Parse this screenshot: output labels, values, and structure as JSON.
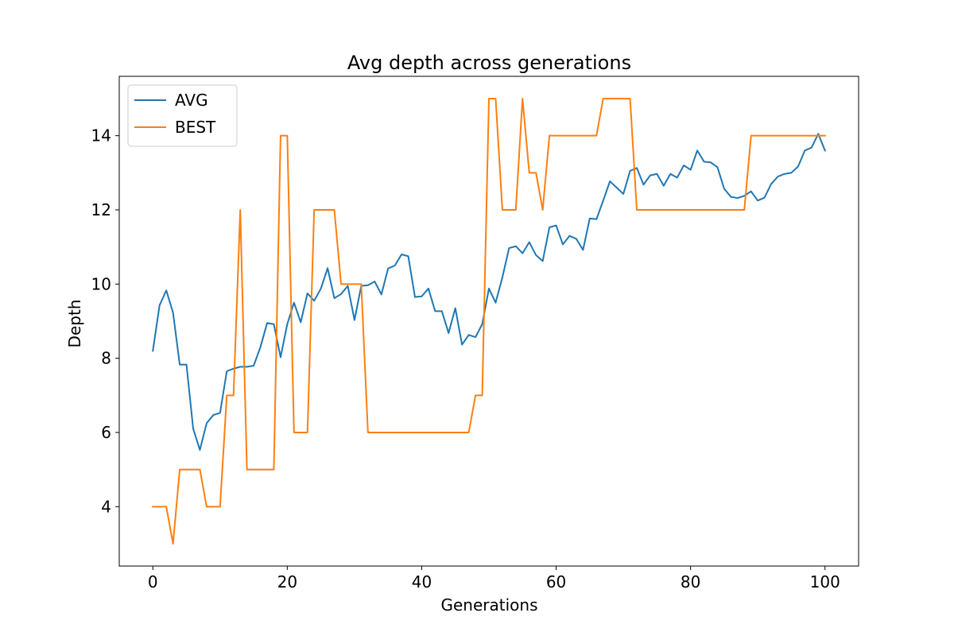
{
  "chart_data": {
    "type": "line",
    "title": "Avg depth across generations",
    "xlabel": "Generations",
    "ylabel": "Depth",
    "xlim": [
      -5,
      105
    ],
    "ylim": [
      2.4,
      15.6
    ],
    "xticks": [
      0,
      20,
      40,
      60,
      80,
      100
    ],
    "yticks": [
      4,
      6,
      8,
      10,
      12,
      14
    ],
    "grid": false,
    "legend_position": "upper-left",
    "x": [
      0,
      1,
      2,
      3,
      4,
      5,
      6,
      7,
      8,
      9,
      10,
      11,
      12,
      13,
      14,
      15,
      16,
      17,
      18,
      19,
      20,
      21,
      22,
      23,
      24,
      25,
      26,
      27,
      28,
      29,
      30,
      31,
      32,
      33,
      34,
      35,
      36,
      37,
      38,
      39,
      40,
      41,
      42,
      43,
      44,
      45,
      46,
      47,
      48,
      49,
      50,
      51,
      52,
      53,
      54,
      55,
      56,
      57,
      58,
      59,
      60,
      61,
      62,
      63,
      64,
      65,
      66,
      67,
      68,
      69,
      70,
      71,
      72,
      73,
      74,
      75,
      76,
      77,
      78,
      79,
      80,
      81,
      82,
      83,
      84,
      85,
      86,
      87,
      88,
      89,
      90,
      91,
      92,
      93,
      94,
      95,
      96,
      97,
      98,
      99,
      100
    ],
    "series": [
      {
        "name": "AVG",
        "color": "#1f77b4",
        "values": [
          8.2,
          9.43,
          9.83,
          9.23,
          7.83,
          7.83,
          6.1,
          5.53,
          6.25,
          6.47,
          6.53,
          7.65,
          7.72,
          7.77,
          7.77,
          7.8,
          8.3,
          8.95,
          8.92,
          8.03,
          8.92,
          9.5,
          8.97,
          9.75,
          9.55,
          9.88,
          10.43,
          9.62,
          9.73,
          9.95,
          9.03,
          9.95,
          9.97,
          10.07,
          9.72,
          10.42,
          10.5,
          10.8,
          10.75,
          9.65,
          9.67,
          9.88,
          9.27,
          9.27,
          8.68,
          9.35,
          8.37,
          8.63,
          8.57,
          8.92,
          9.88,
          9.5,
          10.18,
          10.97,
          11.02,
          10.83,
          11.13,
          10.78,
          10.62,
          11.53,
          11.58,
          11.07,
          11.3,
          11.22,
          10.92,
          11.77,
          11.75,
          12.25,
          12.77,
          12.6,
          12.43,
          13.05,
          13.13,
          12.68,
          12.93,
          12.97,
          12.65,
          12.97,
          12.87,
          13.2,
          13.08,
          13.6,
          13.3,
          13.28,
          13.15,
          12.57,
          12.35,
          12.32,
          12.38,
          12.5,
          12.25,
          12.33,
          12.7,
          12.9,
          12.97,
          13.0,
          13.17,
          13.6,
          13.68,
          14.05,
          13.6
        ]
      },
      {
        "name": "BEST",
        "color": "#ff7f0e",
        "values": [
          4,
          4,
          4,
          3,
          5,
          5,
          5,
          5,
          4,
          4,
          4,
          7,
          7,
          12,
          5,
          5,
          5,
          5,
          5,
          14,
          14,
          6,
          6,
          6,
          12,
          12,
          12,
          12,
          10,
          10,
          10,
          10,
          6,
          6,
          6,
          6,
          6,
          6,
          6,
          6,
          6,
          6,
          6,
          6,
          6,
          6,
          6,
          6,
          7,
          7,
          15,
          15,
          12,
          12,
          12,
          15,
          13,
          13,
          12,
          14,
          14,
          14,
          14,
          14,
          14,
          14,
          14,
          15,
          15,
          15,
          15,
          15,
          12,
          12,
          12,
          12,
          12,
          12,
          12,
          12,
          12,
          12,
          12,
          12,
          12,
          12,
          12,
          12,
          12,
          14,
          14,
          14,
          14,
          14,
          14,
          14,
          14,
          14,
          14,
          14,
          14
        ]
      }
    ]
  }
}
